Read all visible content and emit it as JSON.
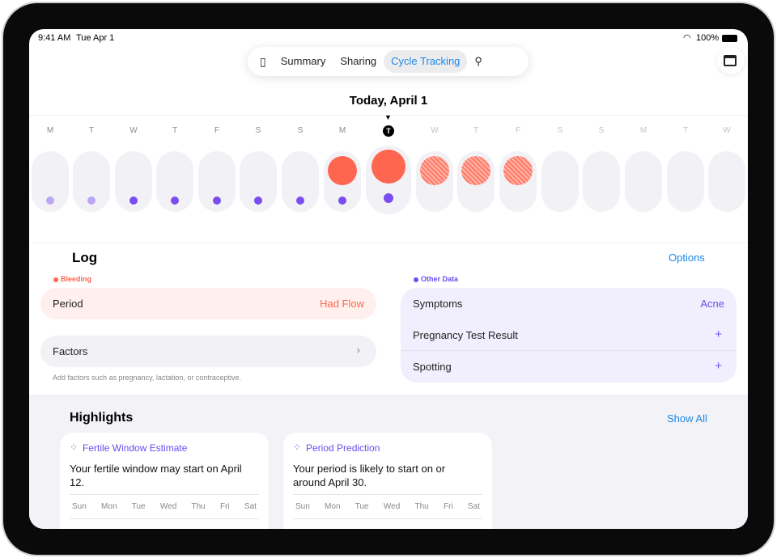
{
  "status": {
    "time": "9:41 AM",
    "date": "Tue Apr 1",
    "battery": "100%"
  },
  "nav": {
    "items": [
      "Summary",
      "Sharing",
      "Cycle Tracking"
    ],
    "active": "Cycle Tracking",
    "icons": [
      "sidebar-icon",
      "search-icon"
    ]
  },
  "toolbar": {
    "calendar_icon": "calendar-add-icon"
  },
  "date_title": "Today, April 1",
  "today_letter": "T",
  "days": [
    {
      "l": "M",
      "fut": false,
      "flow": "none",
      "dot": "light"
    },
    {
      "l": "T",
      "fut": false,
      "flow": "none",
      "dot": "light"
    },
    {
      "l": "W",
      "fut": false,
      "flow": "none",
      "dot": "full"
    },
    {
      "l": "T",
      "fut": false,
      "flow": "none",
      "dot": "full"
    },
    {
      "l": "F",
      "fut": false,
      "flow": "none",
      "dot": "full"
    },
    {
      "l": "S",
      "fut": false,
      "flow": "none",
      "dot": "full"
    },
    {
      "l": "S",
      "fut": false,
      "flow": "none",
      "dot": "full"
    },
    {
      "l": "M",
      "fut": false,
      "flow": "logged",
      "dot": "full"
    },
    {
      "l": "T",
      "fut": false,
      "flow": "logged",
      "dot": "full",
      "today": true
    },
    {
      "l": "W",
      "fut": true,
      "flow": "predicted",
      "dot": "none"
    },
    {
      "l": "T",
      "fut": true,
      "flow": "predicted",
      "dot": "none"
    },
    {
      "l": "F",
      "fut": true,
      "flow": "predicted",
      "dot": "none"
    },
    {
      "l": "S",
      "fut": true,
      "flow": "none",
      "dot": "none"
    },
    {
      "l": "S",
      "fut": true,
      "flow": "none",
      "dot": "none"
    },
    {
      "l": "M",
      "fut": true,
      "flow": "none",
      "dot": "none"
    },
    {
      "l": "T",
      "fut": true,
      "flow": "none",
      "dot": "none"
    },
    {
      "l": "W",
      "fut": true,
      "flow": "none",
      "dot": "none"
    }
  ],
  "log": {
    "title": "Log",
    "options": "Options",
    "bleeding_label": "Bleeding",
    "period_label": "Period",
    "period_value": "Had Flow",
    "factors_label": "Factors",
    "factors_hint": "Add factors such as pregnancy, lactation, or contraceptive.",
    "other_label": "Other Data",
    "symptoms_label": "Symptoms",
    "symptoms_value": "Acne",
    "pregnancy_label": "Pregnancy Test Result",
    "spotting_label": "Spotting",
    "add": "+"
  },
  "highlights": {
    "title": "Highlights",
    "show_all": "Show All",
    "cards": [
      {
        "title": "Fertile Window Estimate",
        "body": "Your fertile window may start on April 12."
      },
      {
        "title": "Period Prediction",
        "body": "Your period is likely to start on or around April 30."
      }
    ],
    "weekdays": [
      "Sun",
      "Mon",
      "Tue",
      "Wed",
      "Thu",
      "Fri",
      "Sat"
    ]
  },
  "colors": {
    "accent": "#1e88e5",
    "flow": "#ff6650",
    "purple": "#7a4df0"
  }
}
